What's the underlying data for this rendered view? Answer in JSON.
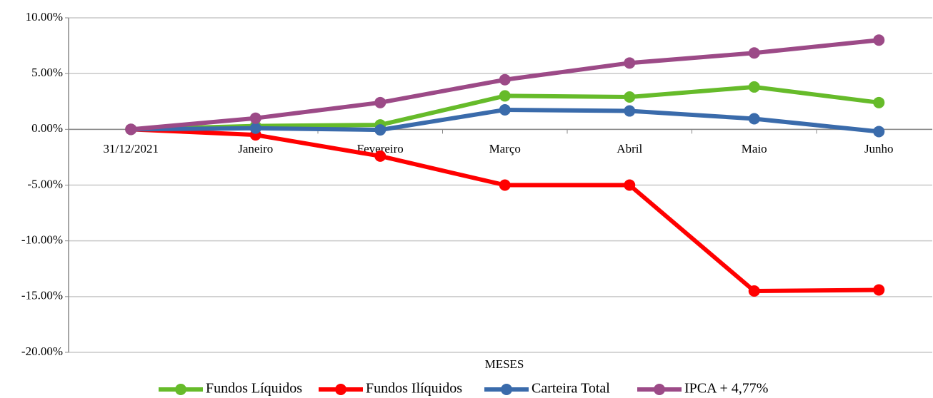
{
  "chart_data": {
    "type": "line",
    "categories": [
      "31/12/2021",
      "Janeiro",
      "Fevereiro",
      "Março",
      "Abril",
      "Maio",
      "Junho"
    ],
    "xlabel": "MESES",
    "series": [
      {
        "name": "Fundos Líquidos",
        "color": "#66bb2a",
        "values": [
          0,
          0.3,
          0.4,
          3.0,
          2.9,
          3.8,
          2.4
        ]
      },
      {
        "name": "Fundos Ilíquidos",
        "color": "#ff0000",
        "values": [
          0,
          -0.5,
          -2.4,
          -5.0,
          -5.0,
          -14.5,
          -14.4
        ]
      },
      {
        "name": "Carteira Total",
        "color": "#3a6bab",
        "values": [
          0,
          0.1,
          -0.05,
          1.75,
          1.65,
          0.95,
          -0.2
        ]
      },
      {
        "name": "IPCA + 4,77%",
        "color": "#9c4a87",
        "values": [
          0,
          1.0,
          2.4,
          4.45,
          5.95,
          6.85,
          8.0
        ]
      }
    ],
    "ylim": [
      -20,
      10
    ],
    "yticks": [
      {
        "value": 10,
        "label": "10.00%"
      },
      {
        "value": 5,
        "label": "5.00%"
      },
      {
        "value": 0,
        "label": "0.00%"
      },
      {
        "value": -5,
        "label": "-5.00%"
      },
      {
        "value": -10,
        "label": "-10.00%"
      },
      {
        "value": -15,
        "label": "-15.00%"
      },
      {
        "value": -20,
        "label": "-20.00%"
      }
    ],
    "grid": true,
    "legend": "bottom"
  }
}
